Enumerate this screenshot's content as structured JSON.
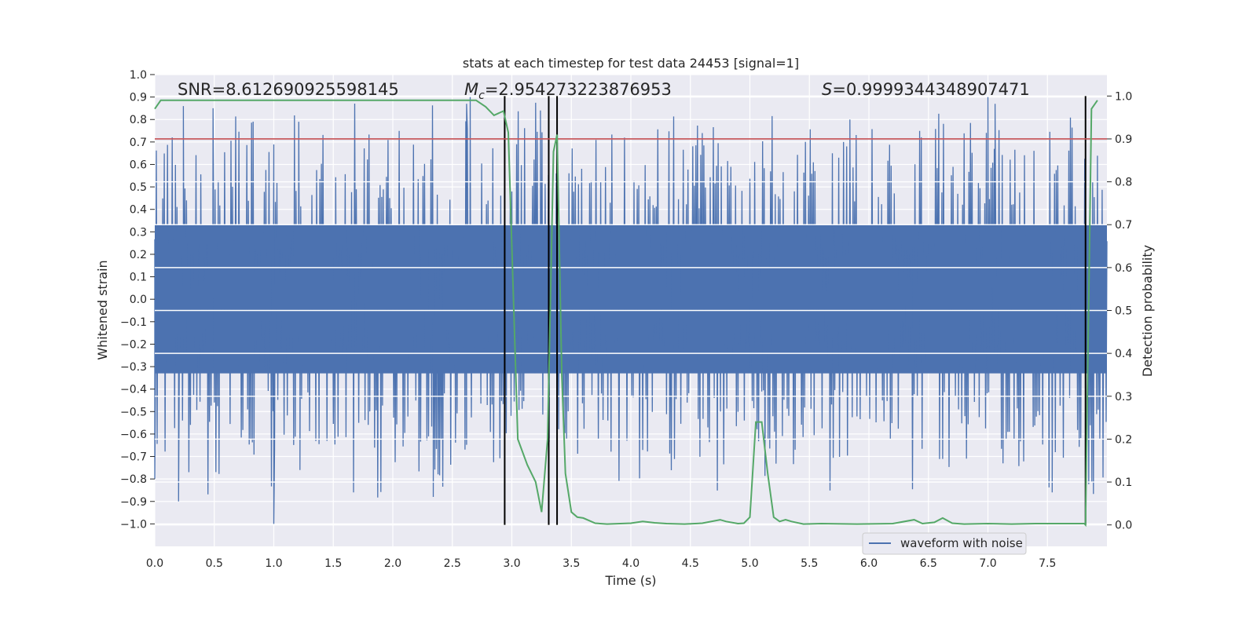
{
  "chart_data": {
    "type": "line",
    "title": "stats at each timestep for test data 24453 [signal=1]",
    "xlabel": "Time (s)",
    "ylabel_left": "Whitened strain",
    "ylabel_right": "Detection probability",
    "xlim": [
      0,
      8
    ],
    "ylim_left": [
      -1.1,
      1.0
    ],
    "ylim_right": [
      -0.05,
      1.05
    ],
    "x_ticks": [
      "0.0",
      "0.5",
      "1.0",
      "1.5",
      "2.0",
      "2.5",
      "3.0",
      "3.5",
      "4.0",
      "4.5",
      "5.0",
      "5.5",
      "6.0",
      "6.5",
      "7.0",
      "7.5"
    ],
    "y_left_ticks": [
      "1.0",
      "0.9",
      "0.8",
      "0.7",
      "0.6",
      "0.5",
      "0.4",
      "0.3",
      "0.2",
      "0.1",
      "0.0",
      "−0.1",
      "−0.2",
      "−0.3",
      "−0.4",
      "−0.5",
      "−0.6",
      "−0.7",
      "−0.8",
      "−0.9",
      "−1.0"
    ],
    "y_right_ticks": [
      "1.0",
      "0.9",
      "0.8",
      "0.7",
      "0.6",
      "0.5",
      "0.4",
      "0.3",
      "0.2",
      "0.1",
      "0.0"
    ],
    "annotations": {
      "snr": "SNR=8.612690925598145",
      "mc_symbol": "M",
      "mc_sub": "c",
      "mc_value": "=2.954273223876953",
      "s_symbol": "S",
      "s_value": "=0.9999344348907471"
    },
    "threshold_line": {
      "axis": "right",
      "value": 0.9,
      "color": "#c44e52"
    },
    "vertical_markers": [
      2.94,
      3.31,
      3.38,
      7.82
    ],
    "series": [
      {
        "name": "waveform with noise",
        "axis": "left",
        "color": "#4c72b0",
        "kind": "noise",
        "core_amplitude": 0.33,
        "spike_range": [
          0.4,
          0.9
        ],
        "highlighted_peaks": [
          {
            "x": 0.0,
            "y": -0.8
          },
          {
            "x": 0.2,
            "y": -0.9
          },
          {
            "x": 0.24,
            "y": 0.86
          },
          {
            "x": 0.49,
            "y": 0.85
          },
          {
            "x": 1.0,
            "y": -1.0
          },
          {
            "x": 1.21,
            "y": 0.79
          },
          {
            "x": 1.22,
            "y": -0.76
          },
          {
            "x": 1.67,
            "y": -0.86
          },
          {
            "x": 2.34,
            "y": -0.88
          },
          {
            "x": 2.62,
            "y": 0.87
          },
          {
            "x": 2.65,
            "y": 0.9
          },
          {
            "x": 3.24,
            "y": 0.84
          },
          {
            "x": 5.84,
            "y": 0.8
          },
          {
            "x": 7.0,
            "y": 0.9
          },
          {
            "x": 7.06,
            "y": 0.87
          },
          {
            "x": 7.54,
            "y": -0.86
          }
        ]
      },
      {
        "name": "detection probability",
        "axis": "right",
        "color": "#55a868",
        "x": [
          0,
          0.05,
          0.1,
          0.5,
          1.0,
          1.5,
          2.0,
          2.5,
          2.6,
          2.7,
          2.78,
          2.85,
          2.93,
          2.97,
          3.05,
          3.13,
          3.2,
          3.25,
          3.3,
          3.35,
          3.38,
          3.42,
          3.45,
          3.5,
          3.55,
          3.6,
          3.7,
          3.8,
          4.0,
          4.1,
          4.2,
          4.3,
          4.45,
          4.6,
          4.75,
          4.8,
          4.9,
          4.95,
          5.0,
          5.05,
          5.1,
          5.15,
          5.2,
          5.25,
          5.3,
          5.35,
          5.45,
          5.6,
          5.9,
          6.2,
          6.38,
          6.45,
          6.55,
          6.62,
          6.7,
          6.8,
          7.0,
          7.2,
          7.4,
          7.6,
          7.81,
          7.82,
          7.87,
          7.92
        ],
        "y": [
          0.97,
          0.99,
          0.99,
          0.99,
          0.99,
          0.99,
          0.99,
          0.99,
          0.99,
          0.99,
          0.975,
          0.955,
          0.965,
          0.915,
          0.2,
          0.14,
          0.1,
          0.03,
          0.2,
          0.87,
          0.91,
          0.35,
          0.12,
          0.03,
          0.018,
          0.016,
          0.004,
          0.002,
          0.004,
          0.008,
          0.005,
          0.003,
          0.002,
          0.004,
          0.012,
          0.008,
          0.003,
          0.004,
          0.018,
          0.24,
          0.24,
          0.12,
          0.018,
          0.008,
          0.012,
          0.008,
          0.002,
          0.003,
          0.002,
          0.003,
          0.012,
          0.003,
          0.006,
          0.016,
          0.004,
          0.002,
          0.003,
          0.002,
          0.003,
          0.003,
          0.003,
          0.0,
          0.97,
          0.99
        ]
      }
    ],
    "legend": {
      "position": "lower-right",
      "entries": [
        "waveform with noise"
      ]
    }
  }
}
